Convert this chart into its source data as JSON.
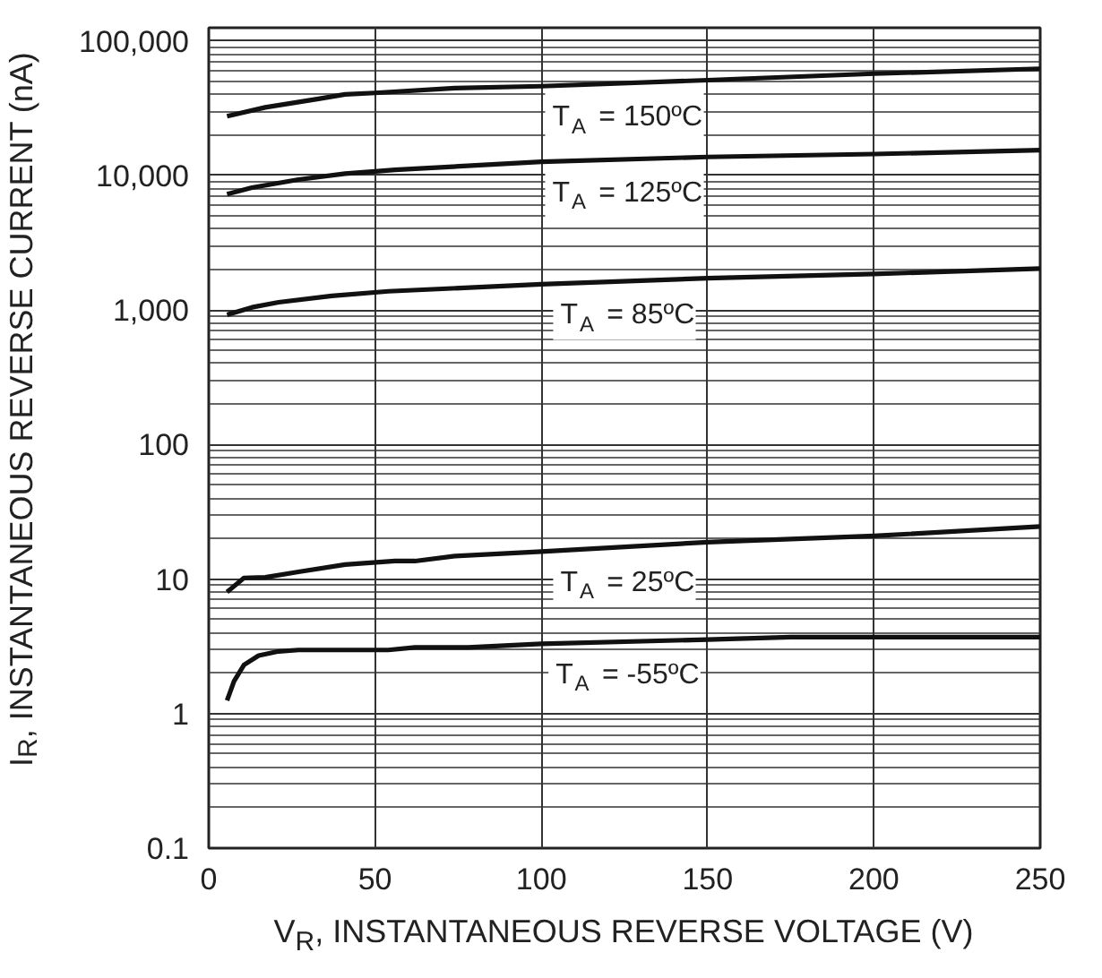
{
  "chart_data": {
    "type": "line",
    "xlabel": "V$_{R}$, INSTANTANEOUS REVERSE VOLTAGE (V)",
    "ylabel": "I$_{R}$, INSTANTANEOUS REVERSE CURRENT (nA)",
    "log": "y",
    "grid": true,
    "marker": "none",
    "line_style": "solid",
    "xlim": [
      0,
      250
    ],
    "xticks": [
      0,
      50,
      100,
      150,
      200,
      250
    ],
    "ylim": [
      0.1,
      125000
    ],
    "yticks": [
      {
        "value": 0.1,
        "label": "0.1"
      },
      1,
      10,
      100,
      {
        "value": 1000,
        "label": "1,000"
      },
      {
        "value": 10000,
        "label": "10,000"
      },
      {
        "value": 100000,
        "label": "100,000"
      }
    ],
    "series": [
      {
        "name": "T$_{A}$ = 150ºC",
        "color": "#111111",
        "x": [
          5.5,
          17,
          33,
          41,
          50,
          74,
          100,
          150,
          200,
          250
        ],
        "values": [
          27500,
          32000,
          37000,
          40000,
          41000,
          44500,
          46000,
          51000,
          57000,
          62000
        ]
      },
      {
        "name": "T$_{A}$ = 125ºC",
        "color": "#111111",
        "x": [
          5.5,
          13,
          27,
          41,
          50,
          56,
          100,
          150,
          200,
          250
        ],
        "values": [
          7250,
          8100,
          9300,
          10300,
          10700,
          11000,
          12600,
          13700,
          14400,
          15400
        ]
      },
      {
        "name": "T$_{A}$ = 85ºC",
        "color": "#111111",
        "x": [
          5.5,
          13,
          21,
          37,
          54,
          100,
          150,
          200,
          250
        ],
        "values": [
          920,
          1045,
          1140,
          1270,
          1375,
          1550,
          1720,
          1850,
          2030
        ]
      },
      {
        "name": "T$_{A}$ = 25ºC",
        "color": "#111111",
        "x": [
          5.5,
          10.6,
          17,
          27,
          41,
          56,
          62,
          74,
          100,
          150,
          200,
          250
        ],
        "values": [
          8.0,
          10.2,
          10.3,
          11.3,
          12.8,
          13.6,
          13.6,
          14.8,
          16,
          18.8,
          20.9,
          24.6
        ]
      },
      {
        "name": "T$_{A}$ = -55ºC",
        "color": "#111111",
        "x": [
          5.5,
          7.6,
          10.6,
          15,
          21,
          27,
          54,
          62,
          78,
          100,
          150,
          175,
          250
        ],
        "values": [
          1.25,
          1.74,
          2.3,
          2.7,
          2.9,
          2.97,
          2.97,
          3.1,
          3.1,
          3.3,
          3.55,
          3.7,
          3.7
        ]
      }
    ]
  }
}
